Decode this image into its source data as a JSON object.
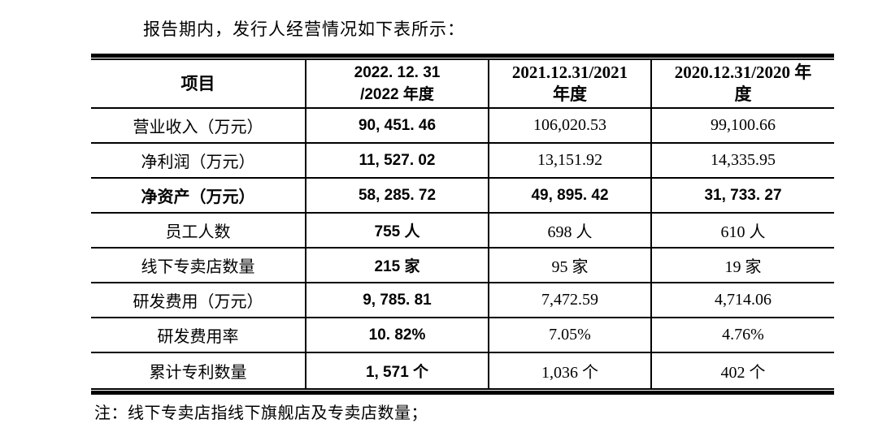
{
  "intro": "报告期内，发行人经营情况如下表所示：",
  "note": "注：线下专卖店指线下旗舰店及专卖店数量；",
  "table": {
    "header": {
      "col0": "项目",
      "col1_lines": [
        "2022. 12. 31",
        "/2022 年度"
      ],
      "col2_lines": [
        "2021.12.31/2021",
        "年度"
      ],
      "col3_lines": [
        "2020.12.31/2020 年",
        "度"
      ]
    },
    "rows": [
      {
        "label": "营业收入（万元）",
        "v2022": "90, 451. 46",
        "v2021": "106,020.53",
        "v2020": "99,100.66"
      },
      {
        "label": "净利润（万元）",
        "v2022": "11, 527. 02",
        "v2021": "13,151.92",
        "v2020": "14,335.95"
      },
      {
        "label": "净资产（万元）",
        "v2022": "58, 285. 72",
        "v2021": "49, 895. 42",
        "v2020": "31, 733. 27"
      },
      {
        "label": "员工人数",
        "v2022": "755 人",
        "v2021": "698 人",
        "v2020": "610 人"
      },
      {
        "label": "线下专卖店数量",
        "v2022": "215 家",
        "v2021": "95 家",
        "v2020": "19 家"
      },
      {
        "label": "研发费用（万元）",
        "v2022": "9, 785. 81",
        "v2021": "7,472.59",
        "v2020": "4,714.06"
      },
      {
        "label": "研发费用率",
        "v2022": "10. 82%",
        "v2021": "7.05%",
        "v2020": "4.76%"
      },
      {
        "label": "累计专利数量",
        "v2022": "1, 571 个",
        "v2021": "1,036 个",
        "v2020": "402 个"
      }
    ]
  }
}
